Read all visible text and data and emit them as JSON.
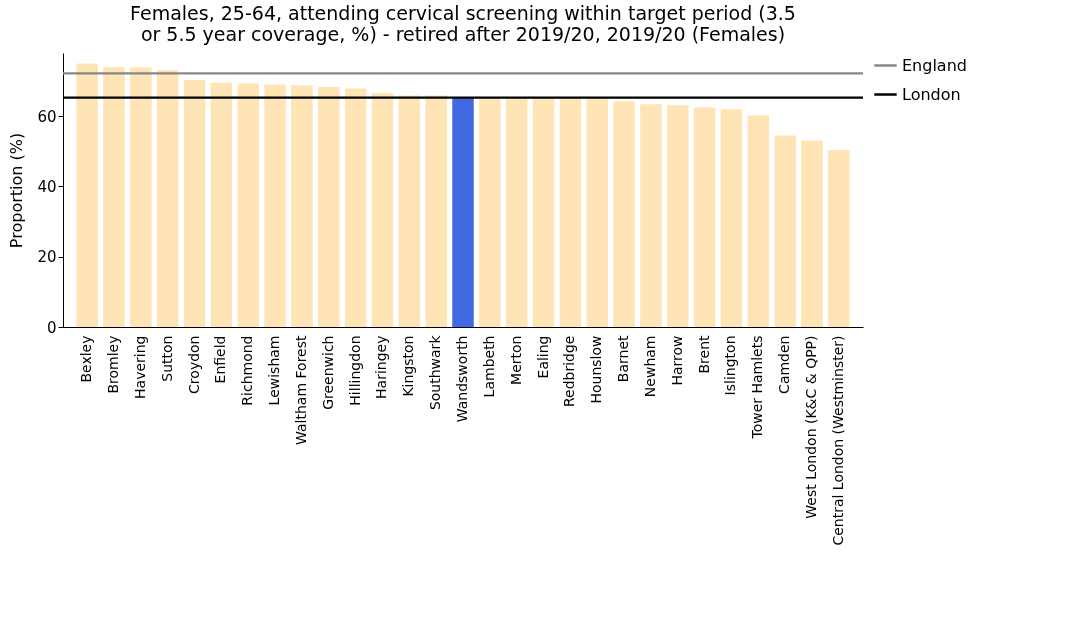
{
  "chart_data": {
    "type": "bar",
    "title": "Females, 25-64, attending cervical screening within target period (3.5 or 5.5 year coverage, %) - retired after 2019/20, 2019/20 (Females)",
    "ylabel": "Proportion (%)",
    "categories": [
      "Bexley",
      "Bromley",
      "Havering",
      "Sutton",
      "Croydon",
      "Enfield",
      "Richmond",
      "Lewisham",
      "Waltham Forest",
      "Greenwich",
      "Hillingdon",
      "Haringey",
      "Kingston",
      "Southwark",
      "Wandsworth",
      "Lambeth",
      "Merton",
      "Ealing",
      "Redbridge",
      "Hounslow",
      "Barnet",
      "Newham",
      "Harrow",
      "Brent",
      "Islington",
      "Tower Hamlets",
      "Camden",
      "West London (K&C & QPP)",
      "Central London (Westminster)"
    ],
    "values": [
      75.0,
      74.0,
      73.9,
      73.1,
      70.3,
      69.5,
      69.3,
      69.0,
      68.8,
      68.3,
      67.9,
      66.6,
      65.9,
      65.9,
      65.2,
      65.0,
      65.0,
      65.0,
      65.0,
      65.0,
      64.3,
      63.4,
      63.1,
      62.5,
      62.0,
      60.2,
      54.5,
      53.1,
      50.4
    ],
    "colors": [
      "#ffe4b5",
      "#ffe4b5",
      "#ffe4b5",
      "#ffe4b5",
      "#ffe4b5",
      "#ffe4b5",
      "#ffe4b5",
      "#ffe4b5",
      "#ffe4b5",
      "#ffe4b5",
      "#ffe4b5",
      "#ffe4b5",
      "#ffe4b5",
      "#ffe4b5",
      "#4169e1",
      "#ffe4b5",
      "#ffe4b5",
      "#ffe4b5",
      "#ffe4b5",
      "#ffe4b5",
      "#ffe4b5",
      "#ffe4b5",
      "#ffe4b5",
      "#ffe4b5",
      "#ffe4b5",
      "#ffe4b5",
      "#ffe4b5",
      "#ffe4b5",
      "#ffe4b5"
    ],
    "ylim": [
      0,
      78
    ],
    "yticks": [
      0,
      20,
      40,
      60
    ],
    "grid": false,
    "legend": "right",
    "ref_lines": [
      {
        "axis": "y",
        "value": 72.2,
        "label": "England",
        "color": "#888888"
      },
      {
        "axis": "y",
        "value": 65.3,
        "label": "London",
        "color": "#000000"
      }
    ]
  }
}
